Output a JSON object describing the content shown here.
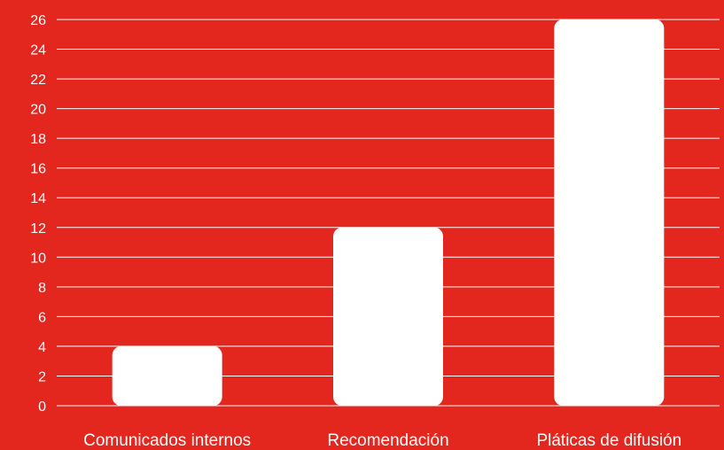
{
  "chart_data": {
    "type": "bar",
    "categories": [
      "Comunicados internos",
      "Recomendación",
      "Pláticas de difusión"
    ],
    "values": [
      4,
      12,
      26
    ],
    "ylim": [
      0,
      26
    ],
    "yticks": [
      0,
      2,
      4,
      6,
      8,
      10,
      12,
      14,
      16,
      18,
      20,
      22,
      24,
      26
    ],
    "grid": true,
    "legend": "none",
    "colors": {
      "background": "#e3261e",
      "bar": "#ffffff",
      "text": "#ffffff",
      "grid": "#ffffff"
    }
  }
}
